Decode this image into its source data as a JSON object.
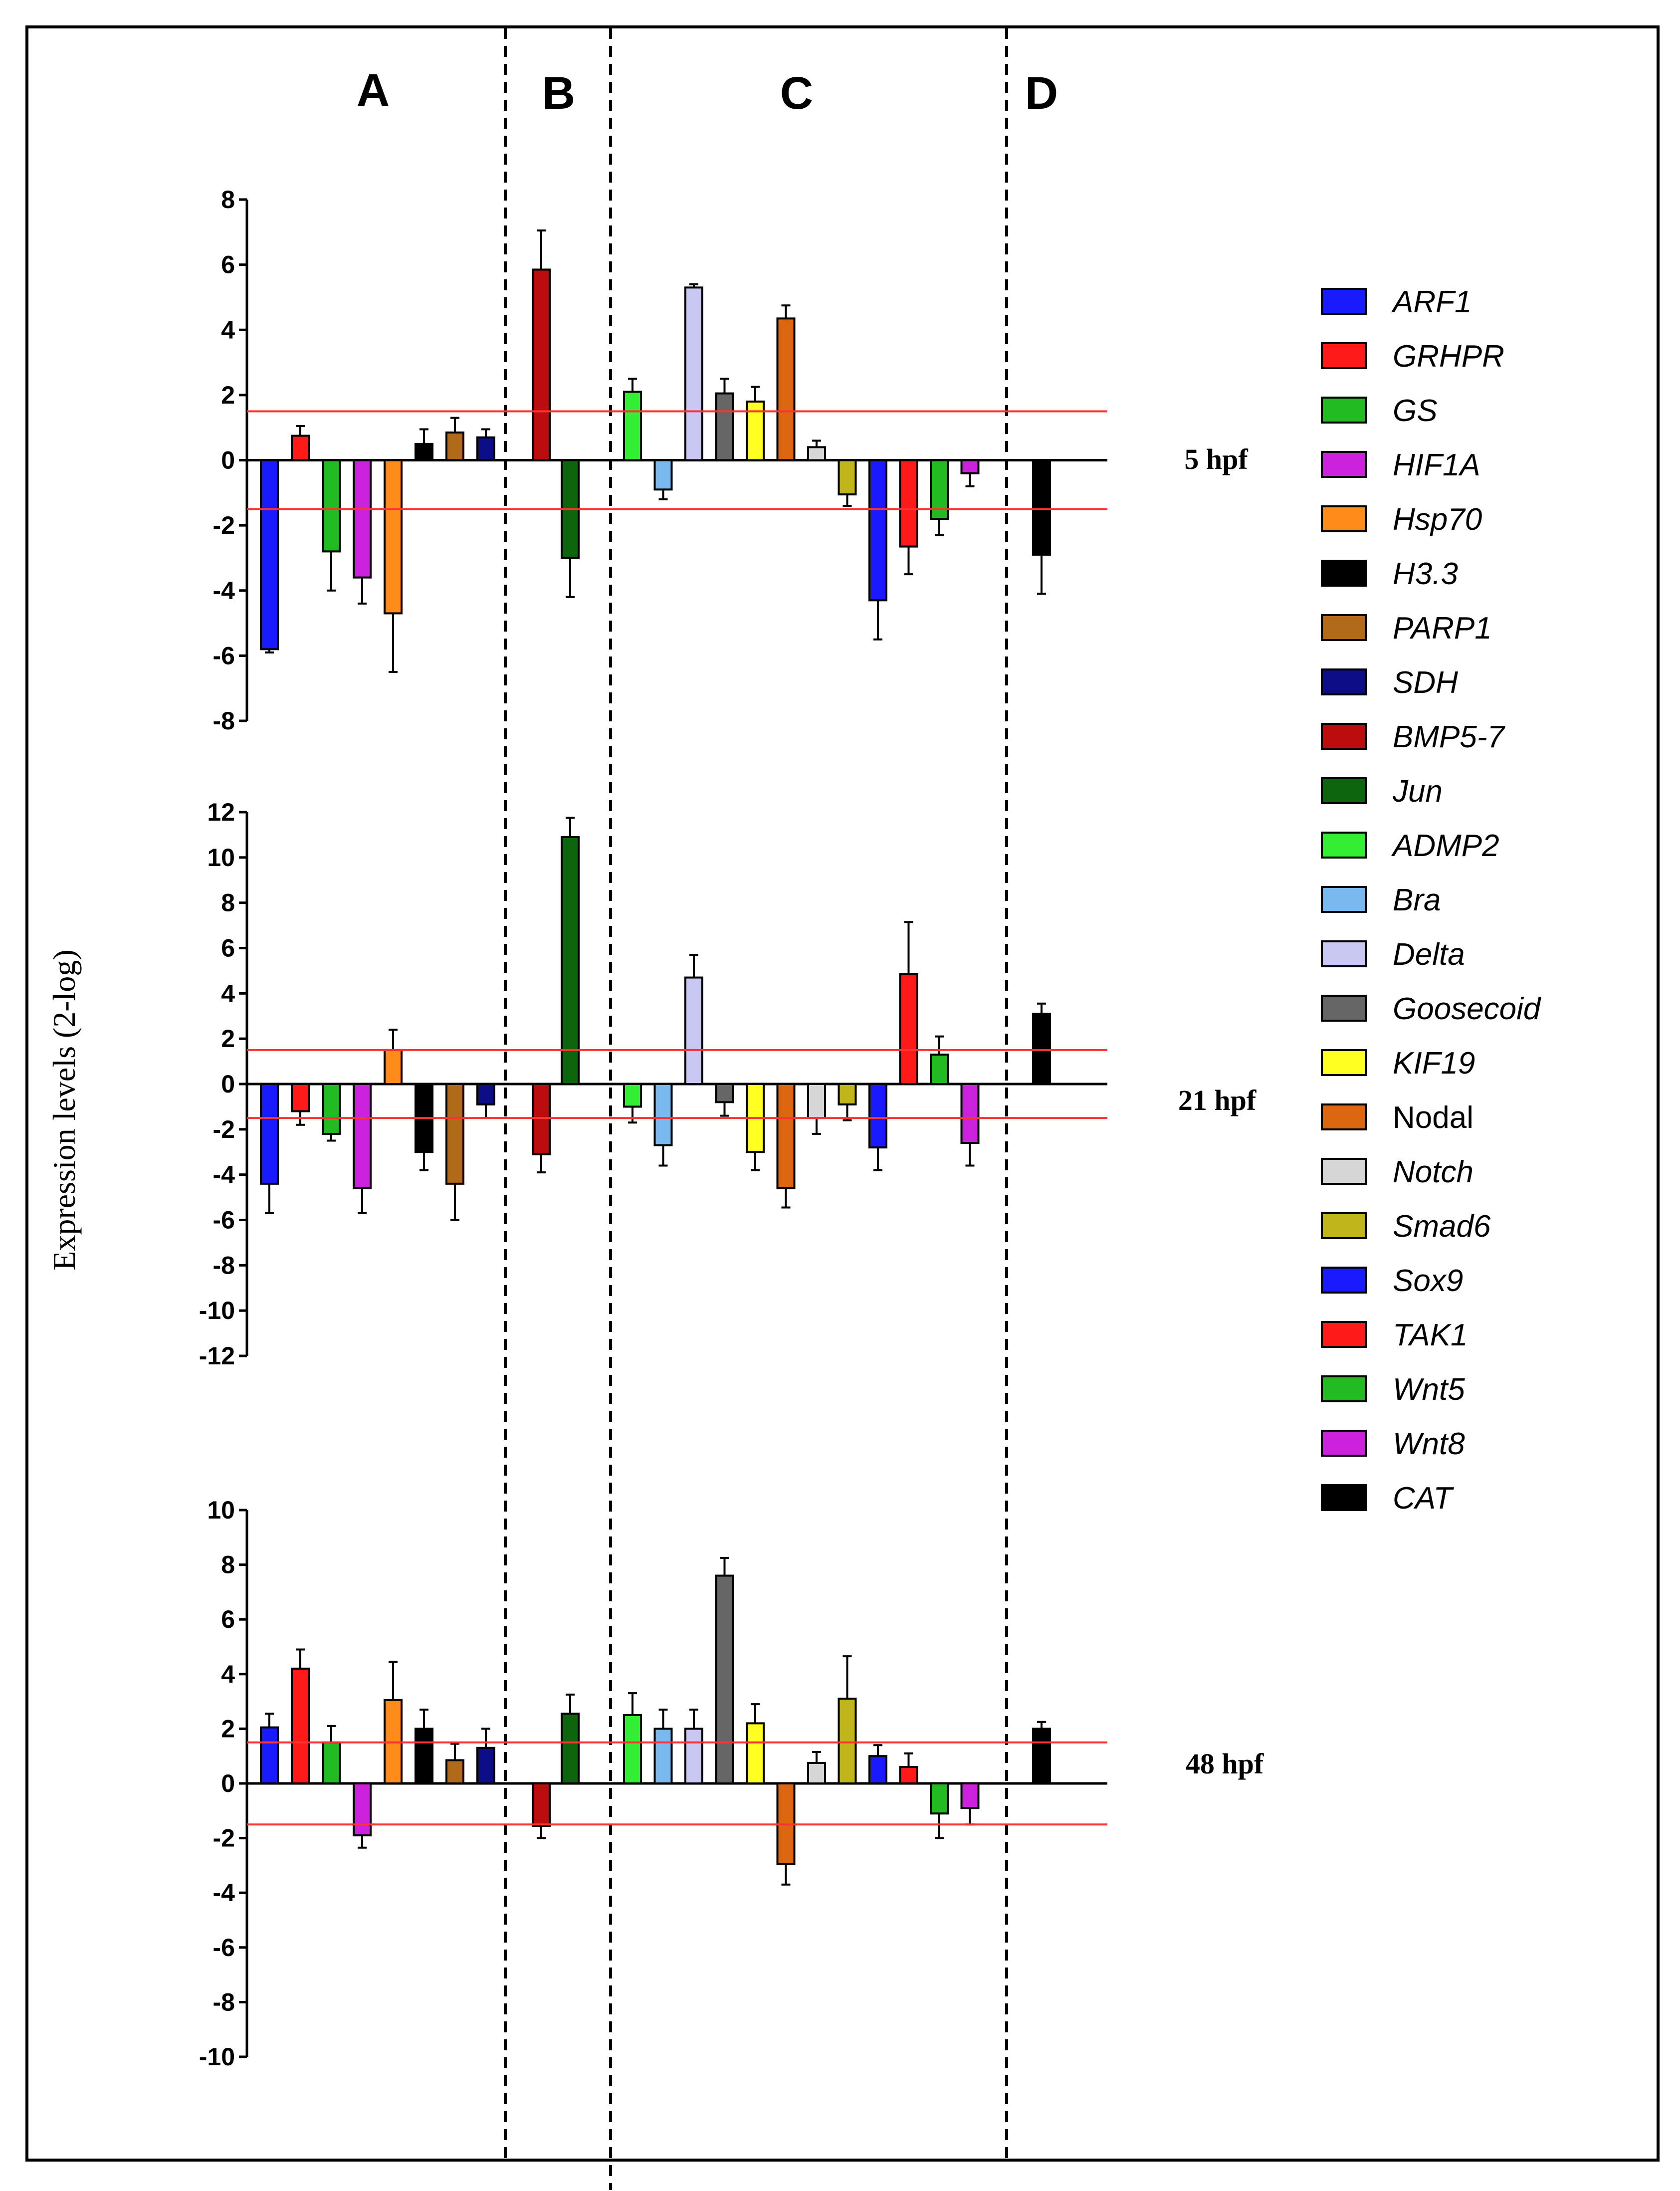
{
  "chart_data": {
    "type": "bar",
    "ylabel": "Expression levels (2-log)",
    "group_labels": [
      "A",
      "B",
      "C",
      "D"
    ],
    "threshold_lines": [
      1.5,
      -1.5
    ],
    "threshold_color": "#ff3333",
    "genes": [
      {
        "name": "ARF1",
        "color": "#1a1aff",
        "italic": true
      },
      {
        "name": "GRHPR",
        "color": "#ff1a1a",
        "italic": true
      },
      {
        "name": "GS",
        "color": "#22bb22",
        "italic": true
      },
      {
        "name": "HIF1A",
        "color": "#cc22dd",
        "italic": true
      },
      {
        "name": "Hsp70",
        "color": "#ff8c1a",
        "italic": true
      },
      {
        "name": "H3.3",
        "color": "#000000",
        "italic": true
      },
      {
        "name": "PARP1",
        "color": "#b06a1a",
        "italic": true
      },
      {
        "name": "SDH",
        "color": "#0d0d88",
        "italic": true
      },
      {
        "name": "BMP5-7",
        "color": "#bb0d0d",
        "italic": true
      },
      {
        "name": "Jun",
        "color": "#0d660d",
        "italic": true
      },
      {
        "name": "ADMP2",
        "color": "#33ee33",
        "italic": true
      },
      {
        "name": "Bra",
        "color": "#7ab8f0",
        "italic": true
      },
      {
        "name": "Delta",
        "color": "#c8c8f2",
        "italic": true
      },
      {
        "name": "Goosecoid",
        "color": "#666666",
        "italic": true
      },
      {
        "name": "KIF19",
        "color": "#ffff22",
        "italic": true
      },
      {
        "name": "Nodal",
        "color": "#dd6611",
        "italic": false
      },
      {
        "name": "Notch",
        "color": "#d6d6d6",
        "italic": true
      },
      {
        "name": "Smad6",
        "color": "#c0b51a",
        "italic": true
      },
      {
        "name": "Sox9",
        "color": "#1a1aff",
        "italic": true
      },
      {
        "name": "TAK1",
        "color": "#ff1a1a",
        "italic": true
      },
      {
        "name": "Wnt5",
        "color": "#22bb22",
        "italic": true
      },
      {
        "name": "Wnt8",
        "color": "#cc22dd",
        "italic": true
      },
      {
        "name": "CAT",
        "color": "#000000",
        "italic": true
      }
    ],
    "panels": [
      {
        "label": "5 hpf",
        "ylim": [
          -8,
          8
        ],
        "ticks": [
          "8",
          "6",
          "4",
          "2",
          "0",
          "-2",
          "-4",
          "-6",
          "-8"
        ],
        "values": [
          -5.8,
          0.75,
          -2.8,
          -3.6,
          -4.7,
          0.5,
          0.85,
          0.7,
          5.85,
          -3.0,
          2.1,
          -0.9,
          5.3,
          2.05,
          1.8,
          4.35,
          0.4,
          -1.05,
          -4.3,
          -2.65,
          -1.8,
          -0.4,
          -2.9
        ],
        "errors": [
          0.1,
          0.3,
          1.2,
          0.8,
          1.8,
          0.45,
          0.45,
          0.25,
          1.2,
          1.2,
          0.4,
          0.3,
          0.1,
          0.45,
          0.45,
          0.4,
          0.2,
          0.35,
          1.2,
          0.85,
          0.5,
          0.4,
          1.2
        ]
      },
      {
        "label": "21 hpf",
        "ylim": [
          -12,
          12
        ],
        "ticks": [
          "12",
          "10",
          "8",
          "6",
          "4",
          "2",
          "0",
          "-2",
          "-4",
          "-6",
          "-8",
          "-10",
          "-12"
        ],
        "values": [
          -4.4,
          -1.2,
          -2.2,
          -4.6,
          1.5,
          -3.0,
          -4.4,
          -0.9,
          -3.1,
          10.9,
          -1.0,
          -2.7,
          4.7,
          -0.8,
          -3.0,
          -4.6,
          -1.5,
          -0.9,
          -2.8,
          4.85,
          1.3,
          -2.6,
          3.1
        ],
        "errors": [
          1.3,
          0.6,
          0.3,
          1.1,
          0.9,
          0.8,
          1.6,
          0.6,
          0.8,
          0.85,
          0.7,
          0.9,
          1.0,
          0.6,
          0.8,
          0.85,
          0.7,
          0.7,
          1.0,
          2.3,
          0.8,
          1.0,
          0.45
        ]
      },
      {
        "label": "48 hpf",
        "ylim": [
          -10,
          10
        ],
        "ticks": [
          "10",
          "8",
          "6",
          "4",
          "2",
          "0",
          "-2",
          "-4",
          "-6",
          "-8",
          "-10"
        ],
        "values": [
          2.05,
          4.2,
          1.5,
          -1.9,
          3.05,
          2.0,
          0.85,
          1.3,
          -1.55,
          2.55,
          2.5,
          2.0,
          2.0,
          7.6,
          2.2,
          -2.95,
          0.75,
          3.1,
          1.0,
          0.6,
          -1.1,
          -0.9,
          2.0
        ]
      }
    ]
  },
  "legend": {
    "labels": [
      "ARF1",
      "GRHPR",
      "GS",
      "HIF1A",
      "Hsp70",
      "H3.3",
      "PARP1",
      "SDH",
      "BMP5-7",
      "Jun",
      "ADMP2",
      "Bra",
      "Delta",
      "Goosecoid",
      "KIF19",
      "Nodal",
      "Notch",
      "Smad6",
      "Sox9",
      "TAK1",
      "Wnt5",
      "Wnt8",
      "CAT"
    ]
  },
  "panel_errors_48": [
    0.5,
    0.7,
    0.6,
    0.45,
    1.4,
    0.7,
    0.6,
    0.7,
    0.45,
    0.7,
    0.8,
    0.7,
    0.7,
    0.65,
    0.7,
    0.75,
    0.4,
    1.55,
    0.4,
    0.5,
    0.9,
    0.6,
    0.25
  ]
}
